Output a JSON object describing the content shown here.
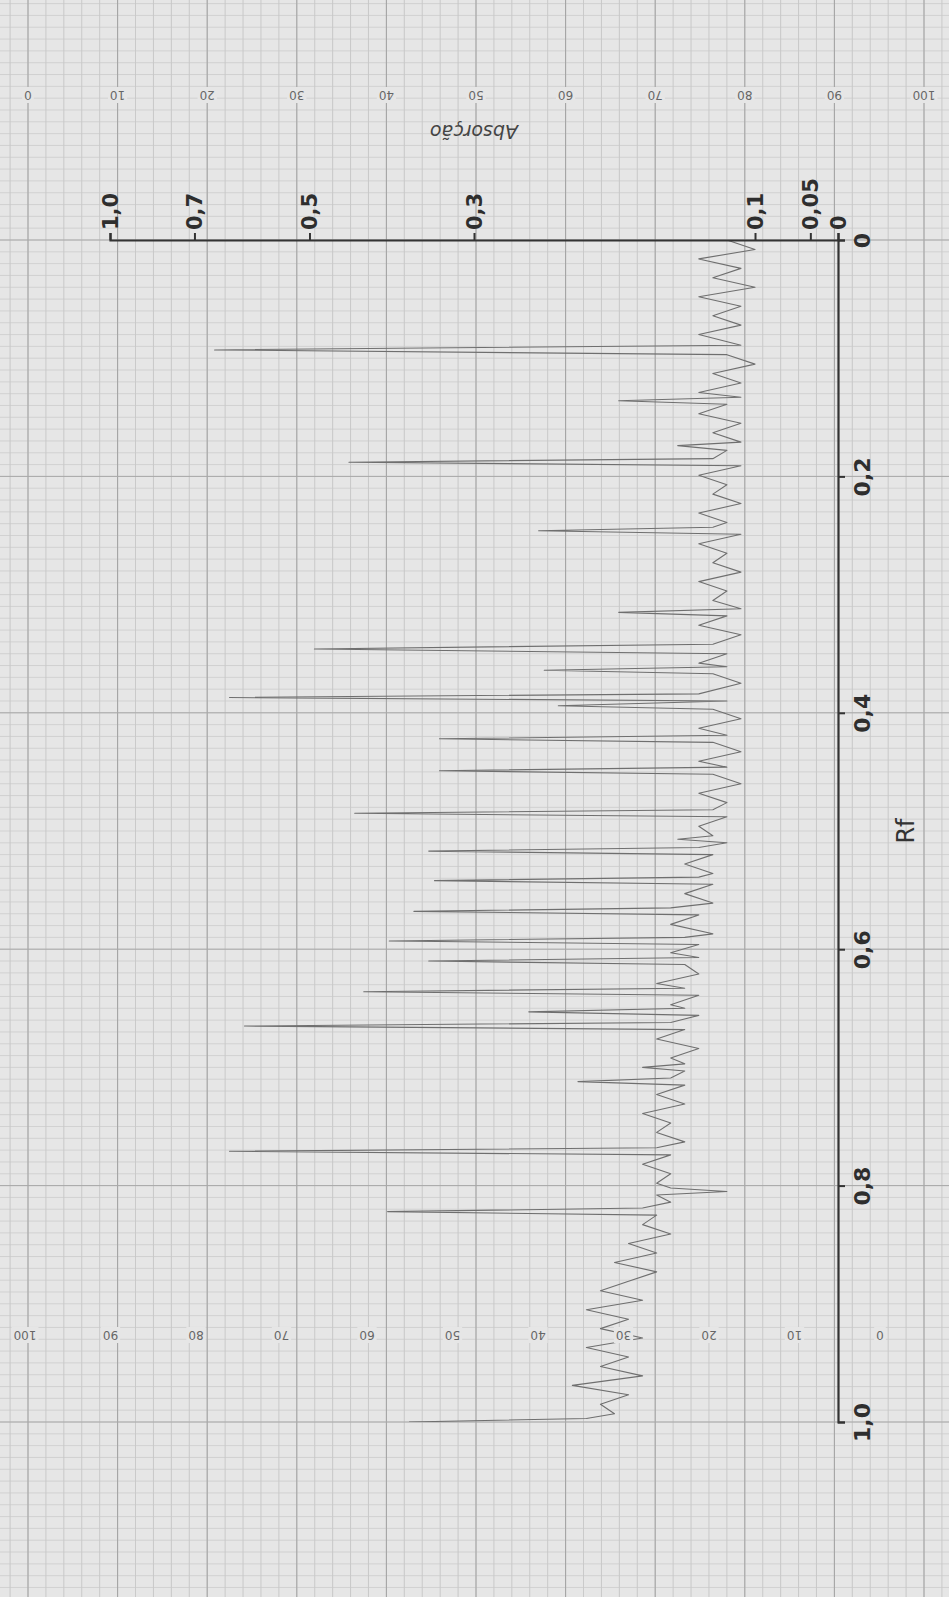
{
  "chart_data": {
    "type": "line",
    "x_label": "Rf",
    "y_label": "Absorção",
    "color": "#6f6f6f",
    "grid": true,
    "xlim": [
      0,
      1.0
    ],
    "xticks": [
      0,
      {
        "value": 0.2,
        "label": "0,2"
      },
      {
        "value": 0.4,
        "label": "0,4"
      },
      {
        "value": 0.6,
        "label": "0,6"
      },
      {
        "value": 0.8,
        "label": "0,8"
      },
      {
        "value": 1.0,
        "label": "1,0"
      }
    ],
    "ylim": [
      0,
      1.0
    ],
    "yticks": [
      0,
      {
        "value": 0.05,
        "label": "0,05"
      },
      {
        "value": 0.1,
        "label": "0,1"
      },
      {
        "value": 0.3,
        "label": "0,3"
      },
      {
        "value": 0.5,
        "label": "0,5"
      },
      {
        "value": 0.7,
        "label": "0,7"
      },
      {
        "value": 1.0,
        "label": "1,0"
      }
    ],
    "y2lim": [
      0,
      100
    ],
    "y2ticks": [
      0,
      10,
      20,
      30,
      40,
      50,
      60,
      70,
      80,
      90,
      100
    ],
    "y3lim": [
      100,
      0
    ],
    "y3ticks": [
      0,
      10,
      20,
      30,
      40,
      50,
      60,
      70,
      80,
      90,
      100
    ],
    "x": [
      0.0,
      0.008,
      0.016,
      0.024,
      0.032,
      0.04,
      0.048,
      0.056,
      0.064,
      0.072,
      0.08,
      0.089,
      0.093,
      0.097,
      0.105,
      0.113,
      0.121,
      0.129,
      0.133,
      0.136,
      0.139,
      0.147,
      0.155,
      0.163,
      0.171,
      0.174,
      0.178,
      0.185,
      0.188,
      0.191,
      0.199,
      0.207,
      0.215,
      0.223,
      0.231,
      0.239,
      0.243,
      0.246,
      0.249,
      0.257,
      0.265,
      0.273,
      0.281,
      0.289,
      0.297,
      0.305,
      0.312,
      0.315,
      0.318,
      0.326,
      0.334,
      0.342,
      0.346,
      0.35,
      0.358,
      0.361,
      0.364,
      0.367,
      0.375,
      0.384,
      0.387,
      0.39,
      0.394,
      0.397,
      0.405,
      0.413,
      0.419,
      0.422,
      0.425,
      0.433,
      0.441,
      0.446,
      0.449,
      0.452,
      0.46,
      0.468,
      0.476,
      0.482,
      0.485,
      0.488,
      0.496,
      0.504,
      0.507,
      0.51,
      0.514,
      0.517,
      0.52,
      0.528,
      0.536,
      0.539,
      0.542,
      0.545,
      0.553,
      0.561,
      0.565,
      0.568,
      0.571,
      0.579,
      0.587,
      0.59,
      0.593,
      0.596,
      0.603,
      0.607,
      0.61,
      0.613,
      0.621,
      0.629,
      0.633,
      0.636,
      0.639,
      0.647,
      0.65,
      0.653,
      0.656,
      0.662,
      0.665,
      0.668,
      0.676,
      0.684,
      0.692,
      0.697,
      0.7,
      0.703,
      0.709,
      0.712,
      0.715,
      0.723,
      0.731,
      0.739,
      0.747,
      0.755,
      0.763,
      0.768,
      0.771,
      0.774,
      0.782,
      0.79,
      0.798,
      0.802,
      0.805,
      0.808,
      0.814,
      0.819,
      0.822,
      0.825,
      0.833,
      0.841,
      0.849,
      0.857,
      0.865,
      0.873,
      0.881,
      0.889,
      0.897,
      0.905,
      0.913,
      0.921,
      0.929,
      0.937,
      0.945,
      0.953,
      0.961,
      0.969,
      0.977,
      0.985,
      0.993,
      0.997,
      1.0
    ],
    "values": [
      0.12,
      0.1,
      0.14,
      0.11,
      0.13,
      0.1,
      0.14,
      0.11,
      0.13,
      0.11,
      0.14,
      0.11,
      0.665,
      0.12,
      0.1,
      0.13,
      0.11,
      0.14,
      0.11,
      0.197,
      0.12,
      0.14,
      0.11,
      0.13,
      0.11,
      0.155,
      0.12,
      0.13,
      0.452,
      0.11,
      0.14,
      0.12,
      0.13,
      0.11,
      0.14,
      0.12,
      0.13,
      0.254,
      0.11,
      0.14,
      0.12,
      0.13,
      0.11,
      0.14,
      0.12,
      0.13,
      0.11,
      0.197,
      0.12,
      0.14,
      0.11,
      0.13,
      0.494,
      0.12,
      0.14,
      0.12,
      0.25,
      0.13,
      0.11,
      0.14,
      0.639,
      0.12,
      0.24,
      0.13,
      0.11,
      0.14,
      0.12,
      0.342,
      0.13,
      0.11,
      0.14,
      0.12,
      0.342,
      0.13,
      0.11,
      0.14,
      0.12,
      0.13,
      0.445,
      0.12,
      0.14,
      0.13,
      0.155,
      0.12,
      0.14,
      0.355,
      0.13,
      0.15,
      0.13,
      0.14,
      0.348,
      0.13,
      0.15,
      0.13,
      0.16,
      0.373,
      0.14,
      0.16,
      0.13,
      0.15,
      0.403,
      0.14,
      0.16,
      0.14,
      0.355,
      0.15,
      0.14,
      0.17,
      0.15,
      0.434,
      0.14,
      0.16,
      0.15,
      0.261,
      0.14,
      0.16,
      0.613,
      0.15,
      0.17,
      0.14,
      0.16,
      0.15,
      0.18,
      0.15,
      0.16,
      0.226,
      0.15,
      0.17,
      0.15,
      0.18,
      0.16,
      0.17,
      0.15,
      0.17,
      0.639,
      0.16,
      0.18,
      0.16,
      0.17,
      0.16,
      0.12,
      0.17,
      0.16,
      0.18,
      0.405,
      0.17,
      0.18,
      0.16,
      0.19,
      0.17,
      0.2,
      0.17,
      0.19,
      0.21,
      0.18,
      0.22,
      0.19,
      0.21,
      0.18,
      0.22,
      0.19,
      0.21,
      0.18,
      0.23,
      0.19,
      0.21,
      0.2,
      0.22,
      0.379
    ]
  }
}
